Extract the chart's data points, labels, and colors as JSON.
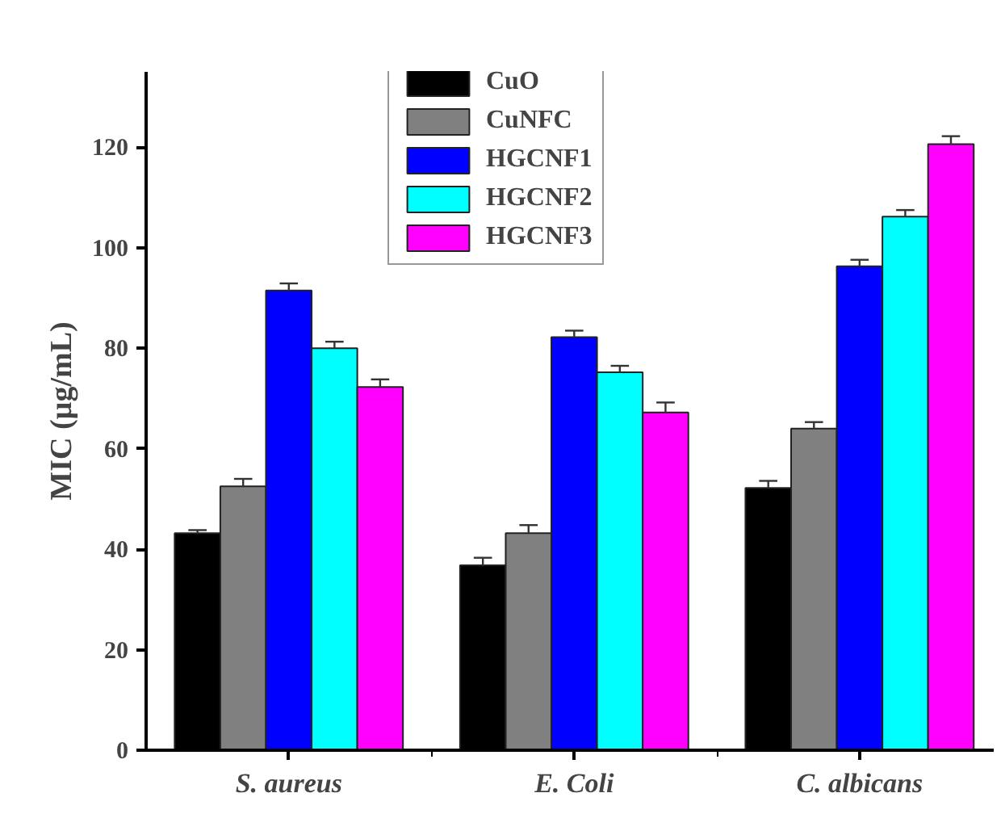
{
  "chart_data": {
    "type": "bar",
    "ylabel": "MIC (µg/mL)",
    "categories": [
      "S. aureus",
      "E. Coli",
      "C. albicans"
    ],
    "series": [
      {
        "name": "CuO",
        "color": "#000000",
        "values": [
          43.2,
          36.8,
          52.2
        ],
        "errors": [
          0.6,
          1.5,
          1.4
        ]
      },
      {
        "name": "CuNFC",
        "color": "#808080",
        "values": [
          52.5,
          43.2,
          64
        ],
        "errors": [
          1.5,
          1.6,
          1.3
        ]
      },
      {
        "name": "HGCNF1",
        "color": "#0000ff",
        "values": [
          91.5,
          82.2,
          96.3
        ],
        "errors": [
          1.4,
          1.3,
          1.3
        ]
      },
      {
        "name": "HGCNF2",
        "color": "#00ffff",
        "values": [
          80,
          75.2,
          106.2
        ],
        "errors": [
          1.3,
          1.3,
          1.3
        ]
      },
      {
        "name": "HGCNF3",
        "color": "#ff00ff",
        "values": [
          72.3,
          67.2,
          120.6
        ],
        "errors": [
          1.5,
          2.0,
          1.6
        ]
      }
    ],
    "ylim": [
      0,
      135
    ],
    "yticks": [
      0,
      20,
      40,
      60,
      80,
      100,
      120
    ],
    "grid": false,
    "legend": "top"
  }
}
